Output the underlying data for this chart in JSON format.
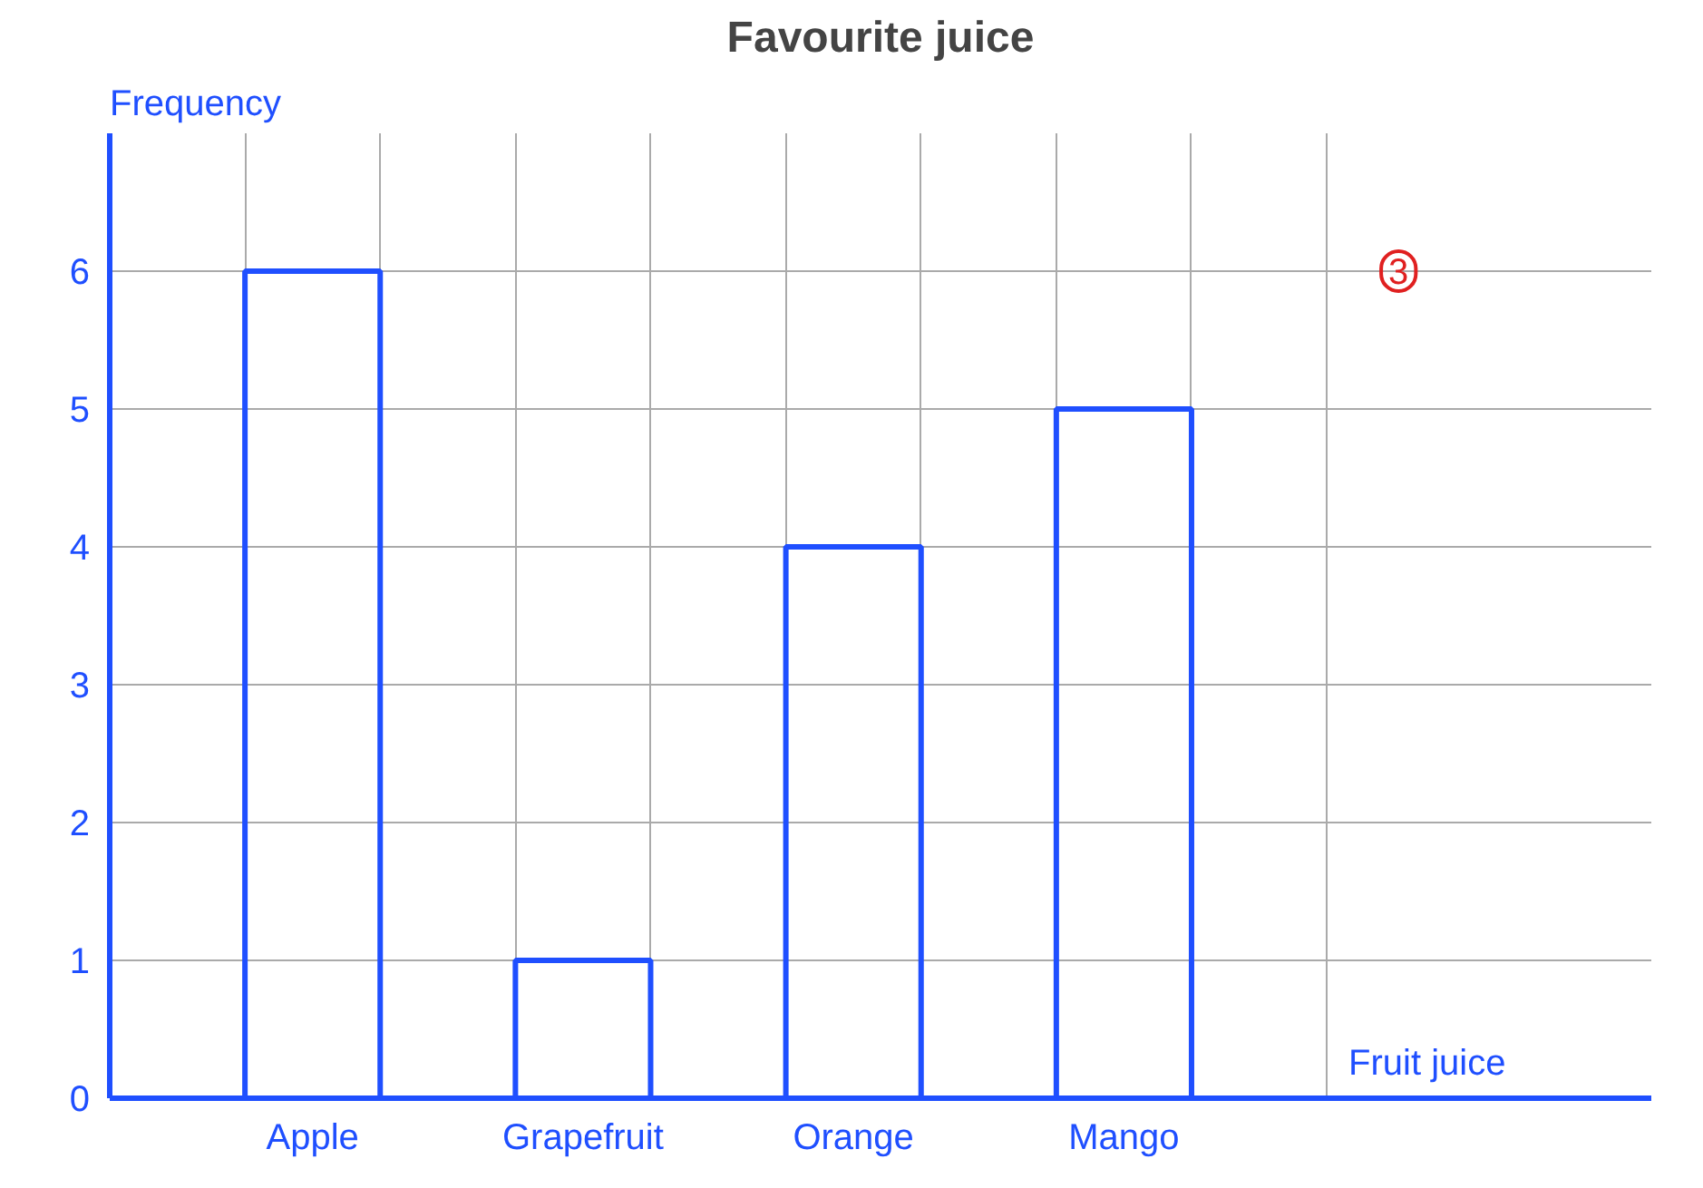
{
  "chart_data": {
    "type": "bar",
    "title": "Favourite juice",
    "xlabel": "Fruit juice",
    "ylabel": "Frequency",
    "categories": [
      "Apple",
      "Grapefruit",
      "Orange",
      "Mango"
    ],
    "values": [
      6,
      1,
      4,
      5
    ],
    "color": "#1f4fff",
    "ylim": [
      0,
      7
    ],
    "yticks": [
      0,
      1,
      2,
      3,
      4,
      5,
      6
    ],
    "grid": true,
    "annotations": [
      "3"
    ]
  }
}
